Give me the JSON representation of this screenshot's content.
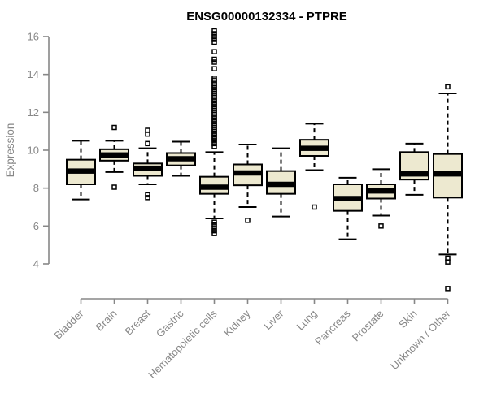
{
  "chart_data": {
    "type": "boxplot",
    "title": "ENSG00000132334 - PTPRE",
    "ylabel": "Expression",
    "xlabel": "",
    "ylim": [
      4,
      16
    ],
    "yticks": [
      4,
      6,
      8,
      10,
      12,
      14,
      16
    ],
    "grid": false,
    "legend": "none",
    "colors": {
      "box_fill": "#EDE9D0",
      "box_border": "#000000",
      "median": "#000000",
      "axis": "#878787",
      "tick_text": "#878787",
      "title_text": "#000000"
    },
    "categories": [
      "Bladder",
      "Brain",
      "Breast",
      "Gastric",
      "Hematopoietic cells",
      "Kidney",
      "Liver",
      "Lung",
      "Pancreas",
      "Prostate",
      "Skin",
      "Unknown / Other"
    ],
    "series": [
      {
        "name": "Bladder",
        "low": 7.4,
        "q1": 8.2,
        "median": 8.9,
        "q3": 9.5,
        "high": 10.5,
        "outliers": []
      },
      {
        "name": "Brain",
        "low": 8.85,
        "q1": 9.45,
        "median": 9.75,
        "q3": 10.05,
        "high": 10.5,
        "outliers": [
          11.2,
          8.05
        ]
      },
      {
        "name": "Breast",
        "low": 8.2,
        "q1": 8.65,
        "median": 9.05,
        "q3": 9.3,
        "high": 10.1,
        "outliers": [
          11.05,
          10.85,
          10.35,
          7.65,
          7.5
        ]
      },
      {
        "name": "Gastric",
        "low": 8.65,
        "q1": 9.2,
        "median": 9.55,
        "q3": 9.85,
        "high": 10.45,
        "outliers": []
      },
      {
        "name": "Hematopoietic cells",
        "low": 6.4,
        "q1": 7.7,
        "median": 8.05,
        "q3": 8.6,
        "high": 9.9,
        "outliers": [
          16.3,
          16.15,
          16.0,
          15.85,
          15.7,
          15.2,
          14.8,
          14.65,
          14.3,
          13.8,
          13.7,
          13.6,
          13.5,
          13.4,
          13.3,
          13.2,
          13.1,
          13.0,
          12.9,
          12.8,
          12.7,
          12.6,
          12.5,
          12.4,
          12.3,
          12.2,
          12.1,
          12.0,
          11.9,
          11.8,
          11.7,
          11.6,
          11.5,
          11.4,
          11.3,
          11.2,
          11.1,
          11.0,
          10.9,
          10.8,
          10.7,
          10.6,
          10.5,
          10.35,
          10.2,
          6.2,
          6.05,
          5.9,
          5.75,
          5.6
        ]
      },
      {
        "name": "Kidney",
        "low": 7.0,
        "q1": 8.15,
        "median": 8.8,
        "q3": 9.25,
        "high": 10.3,
        "outliers": [
          6.3
        ]
      },
      {
        "name": "Liver",
        "low": 6.5,
        "q1": 7.7,
        "median": 8.2,
        "q3": 8.9,
        "high": 10.1,
        "outliers": []
      },
      {
        "name": "Lung",
        "low": 8.95,
        "q1": 9.7,
        "median": 10.1,
        "q3": 10.55,
        "high": 11.4,
        "outliers": [
          7.0
        ]
      },
      {
        "name": "Pancreas",
        "low": 5.3,
        "q1": 6.8,
        "median": 7.45,
        "q3": 8.2,
        "high": 8.55,
        "outliers": []
      },
      {
        "name": "Prostate",
        "low": 6.55,
        "q1": 7.45,
        "median": 7.85,
        "q3": 8.2,
        "high": 9.0,
        "outliers": [
          6.0
        ]
      },
      {
        "name": "Skin",
        "low": 7.65,
        "q1": 8.45,
        "median": 8.75,
        "q3": 9.9,
        "high": 10.35,
        "outliers": []
      },
      {
        "name": "Unknown / Other",
        "low": 4.5,
        "q1": 7.5,
        "median": 8.75,
        "q3": 9.8,
        "high": 13.0,
        "outliers": [
          13.35,
          4.3,
          4.1,
          2.7
        ]
      }
    ]
  }
}
